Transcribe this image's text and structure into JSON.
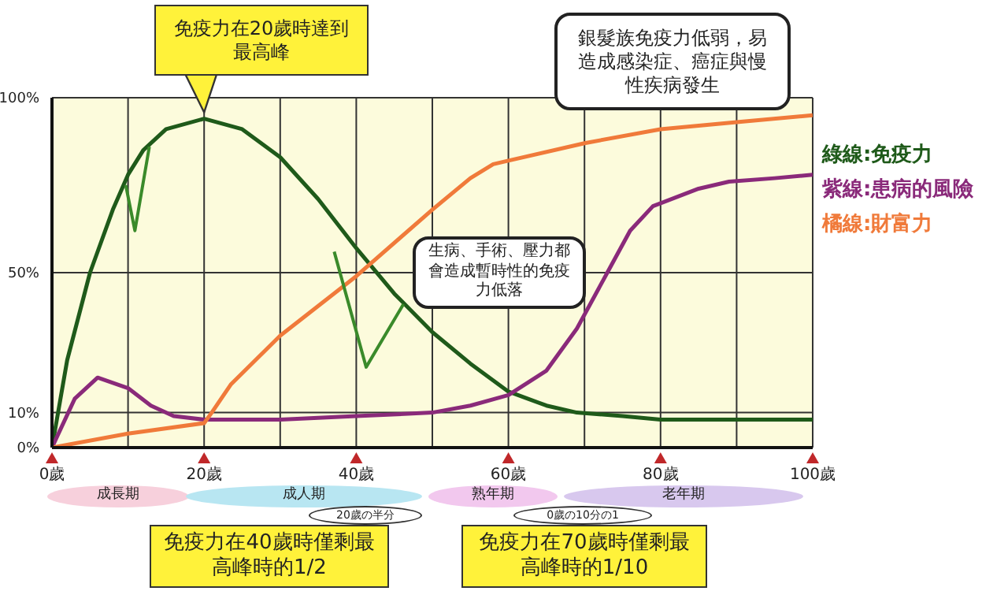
{
  "chart_data": {
    "type": "line",
    "xlim": [
      0,
      100
    ],
    "ylim": [
      0,
      100
    ],
    "xticks": [
      {
        "value": 0,
        "label": "0歲"
      },
      {
        "value": 10,
        "label": null
      },
      {
        "value": 20,
        "label": "20歲"
      },
      {
        "value": 30,
        "label": null
      },
      {
        "value": 40,
        "label": "40歲"
      },
      {
        "value": 50,
        "label": null
      },
      {
        "value": 60,
        "label": "60歲"
      },
      {
        "value": 70,
        "label": null
      },
      {
        "value": 80,
        "label": "80歲"
      },
      {
        "value": 90,
        "label": null
      },
      {
        "value": 100,
        "label": "100歲"
      }
    ],
    "yticks": [
      {
        "value": 0,
        "label": "0%"
      },
      {
        "value": 10,
        "label": "10%"
      },
      {
        "value": 50,
        "label": "50%"
      },
      {
        "value": 100,
        "label": "100%"
      }
    ],
    "grid": true,
    "legend": "top right",
    "marker": "none",
    "line_style": "solid",
    "series": [
      {
        "name": "綠線:免疫力",
        "color": "#1f5a1a",
        "x": [
          0,
          2,
          5,
          8,
          10,
          12,
          15,
          20,
          25,
          30,
          35,
          40,
          45,
          50,
          55,
          60,
          65,
          69,
          75,
          80,
          90,
          100
        ],
        "values": [
          0,
          25,
          50,
          68,
          78,
          85,
          91,
          94,
          91,
          83,
          71,
          57,
          44,
          33,
          24,
          16,
          12,
          10,
          9,
          8,
          8,
          8
        ]
      },
      {
        "name": "紫線:患病的風險",
        "color": "#8a2a7a",
        "x": [
          0,
          3,
          6,
          10,
          13,
          16,
          20,
          30,
          40,
          50,
          55,
          60,
          65,
          69,
          73,
          76,
          79,
          85,
          89,
          95,
          100
        ],
        "values": [
          0,
          14,
          20,
          17,
          12,
          9,
          8,
          8,
          9,
          10,
          12,
          15,
          22,
          34,
          50,
          62,
          69,
          74,
          76,
          77,
          78
        ]
      },
      {
        "name": "橘線:財富力",
        "color": "#f07a3a",
        "x": [
          0,
          10,
          20,
          21,
          23.5,
          30,
          40,
          50,
          55,
          58,
          60,
          70,
          80,
          90,
          100
        ],
        "values": [
          0,
          4,
          7,
          10,
          18,
          32,
          49,
          68,
          77,
          81,
          82,
          87,
          91,
          93,
          95
        ]
      },
      {
        "color": "#3a8a2a",
        "x": [
          9.7,
          10.9,
          12.8
        ],
        "values": [
          75,
          62,
          86
        ]
      },
      {
        "color": "#3a8a2a",
        "x": [
          37.1,
          41.3,
          46.2
        ],
        "values": [
          56,
          23,
          41
        ]
      }
    ],
    "annotations": [
      {
        "text": "免疫力在20歲時達到最高峰",
        "x": 20,
        "y": 94
      },
      "銀髮族免疫力低弱，易造成感染症、癌症與慢性疾病發生",
      "生病、手術、壓力都會造成暫時性的免疫力低落",
      "成長期",
      "成人期",
      "熟年期",
      "老年期",
      "20歲の半分",
      "0歲の10分の1",
      "免疫力在40歲時僅剩最高峰時的1/2",
      "免疫力在70歲時僅剩最高峰時的1/10"
    ]
  }
}
